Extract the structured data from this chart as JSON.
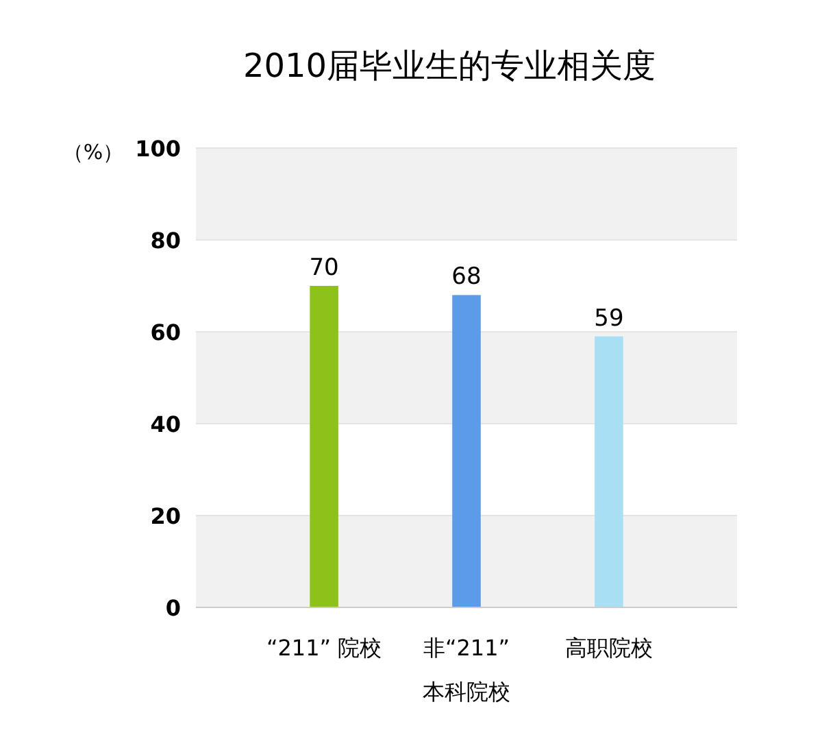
{
  "chart_data": {
    "type": "bar",
    "title": "2010届毕业生的专业相关度",
    "ylabel": "（%）",
    "categories": [
      "“211” 院校",
      "非“211”\n本科院校",
      "高职院校"
    ],
    "values": [
      70,
      68,
      59
    ],
    "colors": [
      "#8cc21a",
      "#5b9be8",
      "#a8dff5"
    ],
    "ylim": [
      0,
      100
    ],
    "yticks": [
      0,
      20,
      40,
      60,
      80,
      100
    ],
    "grid": "y",
    "data_labels": true
  }
}
